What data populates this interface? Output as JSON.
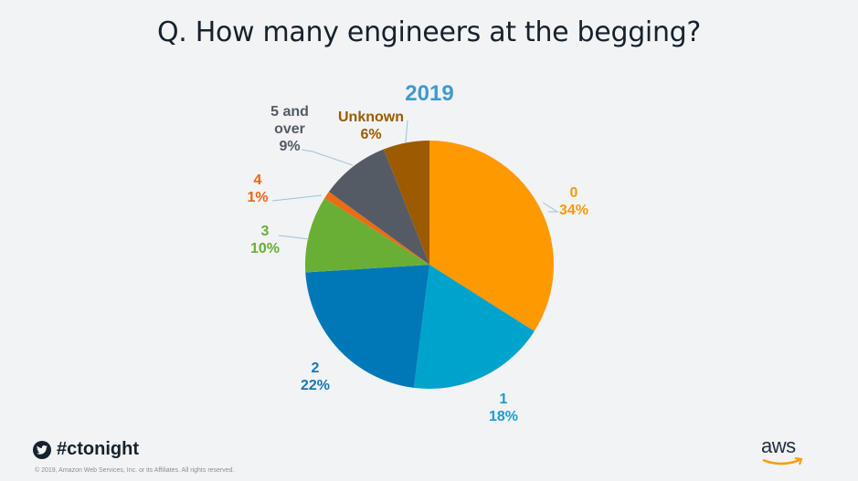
{
  "slide": {
    "title": "Q. How many engineers  at the begging?",
    "hashtag": "#ctonight",
    "twitter_icon": "twitter-bird-icon",
    "copyright": "© 2019, Amazon Web Services,  Inc. or its Affiliates.  All rights reserved.",
    "logo_text": "aws",
    "logo_icon": "aws-smile-arrow-icon"
  },
  "chart_data": {
    "type": "pie",
    "title": "2019",
    "start_angle": "12 o'clock, clockwise",
    "slices": [
      {
        "label": "0",
        "value": 34,
        "display": "34%",
        "color": "#ff9900"
      },
      {
        "label": "1",
        "value": 18,
        "display": "18%",
        "color": "#00a3cc"
      },
      {
        "label": "2",
        "value": 22,
        "display": "22%",
        "color": "#0078b8"
      },
      {
        "label": "3",
        "value": 10,
        "display": "10%",
        "color": "#6aaf35"
      },
      {
        "label": "4",
        "value": 1,
        "display": "1%",
        "color": "#ec6b13"
      },
      {
        "label": "5 and over",
        "value": 9,
        "display": "9%",
        "color": "#545b64"
      },
      {
        "label": "Unknown",
        "value": 6,
        "display": "6%",
        "color": "#9c5b00"
      }
    ],
    "label_colors": {
      "0": "#f39c12",
      "1": "#1a9ed6",
      "2": "#1b76b3",
      "3": "#6aaf35",
      "4": "#e8671a",
      "5 and over": "#545b64",
      "Unknown": "#9c5b00"
    },
    "legend": "none (outside data labels with leader lines)"
  }
}
